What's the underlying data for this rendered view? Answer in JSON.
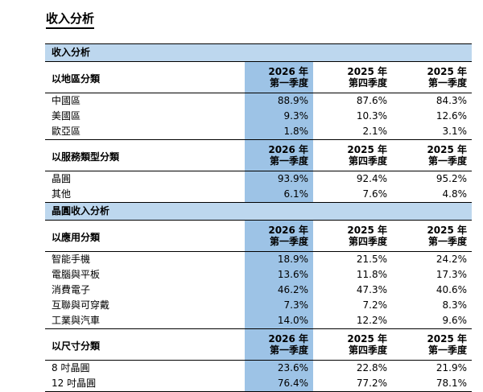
{
  "title": "收入分析",
  "sections": [
    {
      "section_title": "收入分析",
      "groups": [
        {
          "label": "以地區分類",
          "headers": [
            [
              "2026 年",
              "第一季度"
            ],
            [
              "2025 年",
              "第四季度"
            ],
            [
              "2025 年",
              "第一季度"
            ]
          ],
          "rows": [
            {
              "label": "中國區",
              "values": [
                "88.9%",
                "87.6%",
                "84.3%"
              ]
            },
            {
              "label": "美國區",
              "values": [
                "9.3%",
                "10.3%",
                "12.6%"
              ]
            },
            {
              "label": "歐亞區",
              "values": [
                "1.8%",
                "2.1%",
                "3.1%"
              ]
            }
          ]
        },
        {
          "label": "以服務類型分類",
          "headers": [
            [
              "2026 年",
              "第一季度"
            ],
            [
              "2025 年",
              "第四季度"
            ],
            [
              "2025 年",
              "第一季度"
            ]
          ],
          "rows": [
            {
              "label": "晶圓",
              "values": [
                "93.9%",
                "92.4%",
                "95.2%"
              ]
            },
            {
              "label": "其他",
              "values": [
                "6.1%",
                "7.6%",
                "4.8%"
              ]
            }
          ]
        }
      ]
    },
    {
      "section_title": "晶圓收入分析",
      "groups": [
        {
          "label": "以應用分類",
          "headers": [
            [
              "2026 年",
              "第一季度"
            ],
            [
              "2025 年",
              "第四季度"
            ],
            [
              "2025 年",
              "第一季度"
            ]
          ],
          "rows": [
            {
              "label": "智能手機",
              "values": [
                "18.9%",
                "21.5%",
                "24.2%"
              ]
            },
            {
              "label": "電腦與平板",
              "values": [
                "13.6%",
                "11.8%",
                "17.3%"
              ]
            },
            {
              "label": "消費電子",
              "values": [
                "46.2%",
                "47.3%",
                "40.6%"
              ]
            },
            {
              "label": "互聯與可穿戴",
              "values": [
                "7.3%",
                "7.2%",
                "8.3%"
              ]
            },
            {
              "label": "工業與汽車",
              "values": [
                "14.0%",
                "12.2%",
                "9.6%"
              ]
            }
          ]
        },
        {
          "label": "以尺寸分類",
          "headers": [
            [
              "2026 年",
              "第一季度"
            ],
            [
              "2025 年",
              "第四季度"
            ],
            [
              "2025 年",
              "第一季度"
            ]
          ],
          "rows": [
            {
              "label": "8 吋晶圓",
              "values": [
                "23.6%",
                "22.8%",
                "21.9%"
              ]
            },
            {
              "label": "12 吋晶圓",
              "values": [
                "76.4%",
                "77.2%",
                "78.1%"
              ]
            }
          ]
        }
      ]
    }
  ]
}
